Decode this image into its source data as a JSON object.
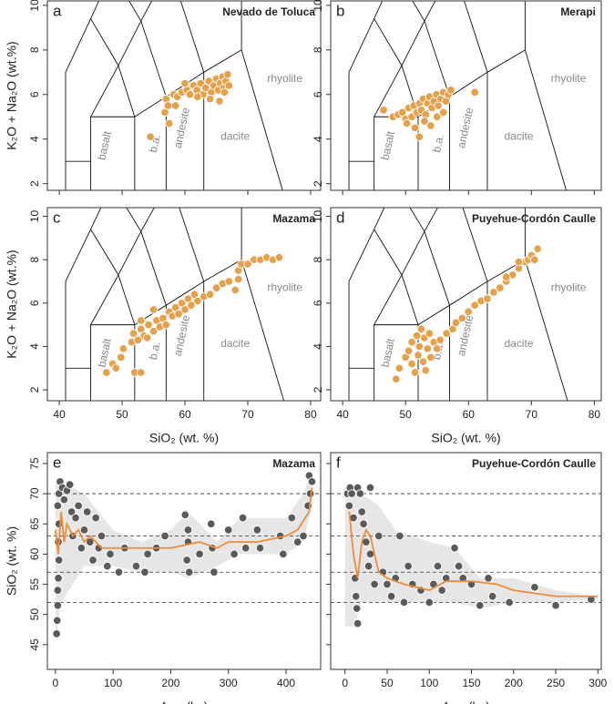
{
  "chart_data": [
    {
      "type": "scatter",
      "diagram": "TAS",
      "panel_label": "a",
      "title": "Nevado de Toluca",
      "y_label": "K₂O + Na₂O (wt.%)",
      "field_labels": [
        "basalt",
        "b.a.",
        "andesite",
        "dacite",
        "rhyolite"
      ],
      "xlim": [
        38.1,
        81.6
      ],
      "ylim": [
        1.7,
        10.2
      ],
      "xticks": [
        40,
        50,
        60,
        70,
        80
      ],
      "yticks": [
        2,
        4,
        6,
        8,
        10
      ],
      "show_xtick_labels": false,
      "show_ytick_labels": true,
      "color": "#e8a048",
      "x": [
        54.5,
        56.8,
        57.0,
        57.3,
        58.2,
        58.8,
        59.5,
        60.3,
        60.8,
        61.4,
        61.9,
        62.5,
        62.9,
        63.3,
        63.8,
        64.2,
        64.6,
        65.0,
        65.3,
        65.6,
        66.0,
        66.2,
        66.5,
        66.8,
        67.0,
        64.0,
        62.0,
        60.0,
        58.5,
        57.5,
        65.5,
        66.3
      ],
      "y": [
        4.1,
        5.2,
        5.8,
        5.5,
        6.0,
        5.9,
        6.1,
        6.2,
        6.0,
        6.4,
        6.2,
        6.5,
        6.0,
        6.3,
        6.6,
        6.1,
        6.4,
        6.7,
        6.2,
        6.5,
        6.8,
        6.3,
        6.6,
        6.9,
        6.4,
        5.8,
        5.9,
        6.5,
        5.5,
        4.7,
        5.7,
        6.1
      ]
    },
    {
      "type": "scatter",
      "diagram": "TAS",
      "panel_label": "b",
      "title": "Merapi",
      "field_labels": [
        "basalt",
        "b.a.",
        "andesite",
        "dacite",
        "rhyolite"
      ],
      "xlim": [
        38.1,
        81.1
      ],
      "ylim": [
        1.7,
        10.2
      ],
      "xticks": [
        40,
        50,
        60,
        70,
        80
      ],
      "yticks": [
        2,
        4,
        6,
        8,
        10
      ],
      "show_xtick_labels": false,
      "show_ytick_labels": true,
      "color": "#e8a048",
      "x": [
        46.5,
        48.0,
        48.8,
        49.5,
        50.0,
        50.5,
        51.0,
        51.3,
        51.8,
        52.2,
        52.5,
        52.8,
        53.2,
        53.5,
        53.8,
        54.2,
        54.5,
        54.9,
        55.2,
        55.6,
        56.0,
        56.4,
        56.8,
        57.2,
        52.2,
        53.0,
        54.0,
        55.0,
        56.0,
        61.0,
        50.2,
        51.5
      ],
      "y": [
        5.3,
        5.0,
        5.1,
        5.2,
        4.9,
        5.4,
        5.0,
        5.5,
        5.2,
        5.6,
        5.3,
        5.8,
        5.1,
        5.6,
        5.9,
        5.4,
        5.7,
        6.0,
        5.5,
        5.8,
        6.1,
        5.7,
        6.0,
        6.2,
        4.1,
        4.8,
        4.6,
        5.0,
        5.2,
        6.1,
        4.7,
        4.5
      ]
    },
    {
      "type": "scatter",
      "diagram": "TAS",
      "panel_label": "c",
      "title": "Mazama",
      "y_label": "K₂O + Na₂O (wt.%)",
      "x_label": "SiO₂ (wt. %)",
      "field_labels": [
        "basalt",
        "b.a.",
        "andesite",
        "dacite",
        "rhyolite"
      ],
      "xlim": [
        38.1,
        81.6
      ],
      "ylim": [
        1.5,
        10.4
      ],
      "xticks": [
        40,
        50,
        60,
        70,
        80
      ],
      "yticks": [
        2,
        4,
        6,
        8,
        10
      ],
      "show_xtick_labels": true,
      "show_ytick_labels": true,
      "color": "#e8a048",
      "x": [
        47.5,
        48.5,
        49,
        49.8,
        50.2,
        51.5,
        51.8,
        52,
        53,
        52.5,
        53,
        53.5,
        54,
        54.2,
        55,
        55.5,
        56,
        56.5,
        57,
        57.5,
        58,
        58.5,
        59,
        59.5,
        60,
        60.5,
        61,
        61.5,
        62,
        63,
        64,
        65,
        66,
        67,
        68,
        68.5,
        69,
        70,
        71,
        72,
        73,
        74,
        75,
        68.5,
        55,
        53
      ],
      "y": [
        2.8,
        3.2,
        3.0,
        3.5,
        3.9,
        4.2,
        4.6,
        2.8,
        2.8,
        4.3,
        4.8,
        4.5,
        4.4,
        5.0,
        4.7,
        5.2,
        4.9,
        5.3,
        5.0,
        5.6,
        5.4,
        5.8,
        5.5,
        6.0,
        5.7,
        6.2,
        5.9,
        6.4,
        6.1,
        6.3,
        6.4,
        6.7,
        6.9,
        7.0,
        6.6,
        7.5,
        7.8,
        7.8,
        8.0,
        8.0,
        8.1,
        8.0,
        8.1,
        7.1,
        5.7,
        5.2
      ]
    },
    {
      "type": "scatter",
      "diagram": "TAS",
      "panel_label": "d",
      "title": "Puyehue-Cordón Caulle",
      "x_label": "SiO₂ (wt. %)",
      "field_labels": [
        "basalt",
        "b.a.",
        "andesite",
        "dacite",
        "rhyolite"
      ],
      "xlim": [
        38.1,
        81.1
      ],
      "ylim": [
        1.5,
        10.4
      ],
      "xticks": [
        40,
        50,
        60,
        70,
        80
      ],
      "yticks": [
        2,
        4,
        6,
        8,
        10
      ],
      "show_xtick_labels": true,
      "show_ytick_labels": true,
      "color": "#e8a048",
      "x": [
        48.5,
        49,
        50,
        50.5,
        51,
        51,
        51.5,
        51.8,
        52,
        52.2,
        52.5,
        52.8,
        53,
        53.2,
        53.5,
        53.8,
        54,
        54.5,
        55,
        55.5,
        56.5,
        57.5,
        58,
        59,
        60,
        61,
        62,
        63,
        64,
        65,
        66,
        67,
        68,
        69,
        69.5,
        70,
        70.5,
        71,
        68,
        66
      ],
      "y": [
        2.5,
        3.0,
        3.5,
        3.8,
        4.2,
        3.2,
        2.8,
        4.5,
        3.6,
        4.0,
        4.8,
        3.3,
        4.4,
        2.9,
        3.9,
        4.6,
        3.5,
        4.2,
        3.9,
        4.3,
        4.6,
        4.8,
        5.1,
        5.3,
        5.6,
        5.9,
        6.1,
        6.2,
        6.5,
        6.7,
        7.0,
        7.3,
        7.6,
        7.9,
        8.0,
        8.2,
        8.0,
        8.5,
        7.9,
        7.2
      ]
    },
    {
      "type": "scatter",
      "panel_label": "e",
      "title": "Mazama",
      "y_label": "SiO₂ (wt. %)",
      "x_label": "Age (ka)",
      "xlim": [
        -14,
        460
      ],
      "ylim": [
        40.9,
        76.8
      ],
      "xticks": [
        0,
        100,
        200,
        300,
        400
      ],
      "yticks": [
        45,
        50,
        55,
        60,
        65,
        70,
        75
      ],
      "show_xtick_labels": true,
      "show_ytick_labels": true,
      "hlines": [
        52,
        57,
        63,
        70
      ],
      "color": "#5a5a5a",
      "x": [
        2,
        3,
        4,
        4,
        5,
        6,
        5,
        6,
        4,
        6,
        8,
        12,
        15,
        20,
        25,
        28,
        30,
        35,
        40,
        45,
        50,
        55,
        60,
        65,
        70,
        75,
        80,
        90,
        95,
        110,
        120,
        140,
        155,
        160,
        175,
        190,
        225,
        228,
        230,
        232,
        250,
        270,
        272,
        275,
        300,
        310,
        325,
        330,
        350,
        355,
        390,
        395,
        410,
        420,
        440,
        442,
        438,
        445,
        430,
        230
      ],
      "y": [
        46.8,
        49,
        51.5,
        54,
        56,
        59,
        62,
        65,
        68,
        70,
        72,
        71,
        69,
        70.5,
        71.5,
        67,
        63,
        66,
        68,
        61,
        64,
        67,
        62,
        59,
        66,
        61,
        63,
        58,
        60,
        57,
        61,
        58,
        57,
        60,
        61,
        63,
        66.5,
        59,
        62,
        57,
        60,
        65,
        61,
        57,
        64,
        60,
        66,
        61,
        64,
        61,
        63,
        60,
        66,
        62,
        73,
        70,
        68,
        72,
        63,
        64
      ],
      "line": {
        "color": "#ee8c38",
        "x": [
          0,
          5,
          10,
          15,
          20,
          30,
          40,
          50,
          60,
          80,
          100,
          150,
          200,
          250,
          280,
          300,
          350,
          400,
          420,
          440,
          445
        ],
        "y": [
          64,
          60,
          67,
          62,
          65,
          63,
          64,
          62,
          63,
          61,
          61,
          61,
          61,
          62,
          61,
          62,
          62,
          63,
          64,
          67,
          71
        ]
      },
      "band": {
        "color": "#e6e6e6",
        "x": [
          0,
          10,
          50,
          100,
          150,
          200,
          230,
          280,
          320,
          400,
          430,
          445
        ],
        "upper": [
          72,
          72,
          70,
          64,
          62,
          64,
          67,
          62,
          66,
          66,
          70,
          74
        ],
        "lower": [
          46,
          52,
          58,
          58,
          57,
          57,
          56,
          58,
          60,
          60,
          62,
          68
        ]
      }
    },
    {
      "type": "scatter",
      "panel_label": "f",
      "title": "Puyehue-Cordón Caulle",
      "x_label": "Age (ka)",
      "xlim": [
        -17,
        304
      ],
      "ylim": [
        40.9,
        76.8
      ],
      "xticks": [
        0,
        50,
        100,
        150,
        200,
        250,
        300
      ],
      "yticks": [
        45,
        50,
        55,
        60,
        65,
        70,
        75
      ],
      "show_xtick_labels": true,
      "show_ytick_labels": false,
      "hlines": [
        52,
        57,
        63,
        70
      ],
      "color": "#5a5a5a",
      "x": [
        3,
        5,
        6,
        8,
        10,
        12,
        13,
        14,
        15,
        15,
        18,
        20,
        22,
        25,
        28,
        30,
        35,
        40,
        45,
        50,
        55,
        60,
        65,
        70,
        75,
        80,
        90,
        100,
        105,
        110,
        115,
        120,
        130,
        135,
        140,
        150,
        160,
        170,
        175,
        195,
        225,
        250,
        292,
        30
      ],
      "y": [
        70,
        68,
        71,
        70,
        66,
        56,
        53,
        51,
        48.5,
        71,
        70,
        67,
        65,
        62,
        58,
        60,
        55,
        63,
        57,
        55,
        53,
        56,
        63,
        52,
        58,
        55,
        54,
        52,
        55,
        58,
        54,
        56,
        61,
        58,
        56,
        55,
        51.5,
        56,
        53,
        52,
        54.5,
        51.5,
        52.5,
        71
      ],
      "line": {
        "color": "#ee8c38",
        "x": [
          5,
          10,
          15,
          20,
          25,
          30,
          40,
          50,
          70,
          100,
          120,
          150,
          180,
          200,
          250,
          300
        ],
        "y": [
          67,
          60,
          56,
          62,
          64,
          63,
          57,
          56,
          55,
          54,
          55.5,
          55.5,
          55,
          54,
          53,
          53
        ]
      },
      "band": {
        "color": "#e6e6e6",
        "x": [
          0,
          10,
          20,
          40,
          60,
          100,
          130,
          160,
          200,
          250,
          300
        ],
        "upper": [
          71,
          71,
          70,
          68,
          64,
          62,
          61,
          56,
          56,
          54,
          53
        ],
        "lower": [
          48,
          48,
          52,
          52,
          52,
          52,
          52,
          51,
          52,
          52,
          52.5
        ]
      }
    }
  ],
  "tas_field_lines": [
    {
      "x": [
        41,
        41,
        45,
        48.4,
        52.5
      ],
      "y": [
        0,
        7,
        9.4,
        11.5,
        14
      ]
    },
    {
      "x": [
        41,
        45
      ],
      "y": [
        3,
        3
      ]
    },
    {
      "x": [
        45,
        45,
        52,
        52
      ],
      "y": [
        0,
        5,
        5,
        0
      ]
    },
    {
      "x": [
        45,
        49.4,
        53,
        57.6,
        61
      ],
      "y": [
        5,
        7.3,
        9.3,
        11.7,
        13.5
      ]
    },
    {
      "x": [
        52,
        57,
        63,
        69,
        69
      ],
      "y": [
        5,
        5.9,
        7,
        8,
        13
      ]
    },
    {
      "x": [
        57,
        57
      ],
      "y": [
        0,
        5.9
      ]
    },
    {
      "x": [
        63,
        63
      ],
      "y": [
        0,
        7
      ]
    },
    {
      "x": [
        52,
        49.4,
        45
      ],
      "y": [
        5,
        7.3,
        9.4
      ]
    },
    {
      "x": [
        57,
        53,
        48.4
      ],
      "y": [
        5.9,
        9.3,
        11.5
      ]
    },
    {
      "x": [
        63,
        57.6,
        52.5
      ],
      "y": [
        7,
        11.7,
        14
      ]
    },
    {
      "x": [
        69,
        77.3
      ],
      "y": [
        8,
        0
      ]
    }
  ]
}
